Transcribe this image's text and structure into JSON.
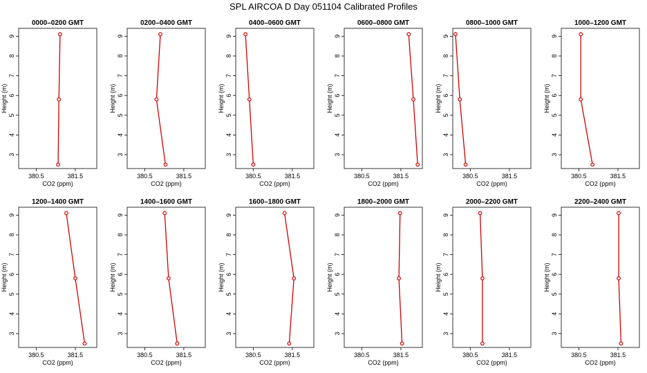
{
  "title": "SPL AIRCOA D  Day 051104  Calibrated Profiles",
  "chart_data": {
    "type": "line",
    "title": "SPL AIRCOA D  Day 051104  Calibrated Profiles",
    "xlabel": "CO2 (ppm)",
    "ylabel": "Height (m)",
    "xlim": [
      380.05,
      382.05
    ],
    "ylim": [
      2.3,
      9.4
    ],
    "xticks": [
      380.5,
      381.5
    ],
    "yticks": [
      3,
      4,
      5,
      6,
      7,
      8,
      9
    ],
    "grid": false,
    "series_color": "#cc0000",
    "panels": [
      {
        "title": "0000–0200 GMT",
        "points": [
          {
            "x": 381.11,
            "y": 9.1
          },
          {
            "x": 381.08,
            "y": 5.8
          },
          {
            "x": 381.06,
            "y": 2.5
          }
        ]
      },
      {
        "title": "0200–0400 GMT",
        "points": [
          {
            "x": 380.9,
            "y": 9.1
          },
          {
            "x": 380.8,
            "y": 5.8
          },
          {
            "x": 381.03,
            "y": 2.5
          }
        ]
      },
      {
        "title": "0400–0600 GMT",
        "points": [
          {
            "x": 380.3,
            "y": 9.1
          },
          {
            "x": 380.4,
            "y": 5.8
          },
          {
            "x": 380.5,
            "y": 2.5
          }
        ]
      },
      {
        "title": "0600–0800 GMT",
        "points": [
          {
            "x": 381.7,
            "y": 9.1
          },
          {
            "x": 381.82,
            "y": 5.8
          },
          {
            "x": 381.93,
            "y": 2.5
          }
        ]
      },
      {
        "title": "0800–1000 GMT",
        "points": [
          {
            "x": 380.12,
            "y": 9.1
          },
          {
            "x": 380.23,
            "y": 5.8
          },
          {
            "x": 380.38,
            "y": 2.5
          }
        ]
      },
      {
        "title": "1000–1200 GMT",
        "points": [
          {
            "x": 380.55,
            "y": 9.1
          },
          {
            "x": 380.55,
            "y": 5.8
          },
          {
            "x": 380.85,
            "y": 2.5
          }
        ]
      },
      {
        "title": "1200–1400 GMT",
        "points": [
          {
            "x": 381.27,
            "y": 9.1
          },
          {
            "x": 381.5,
            "y": 5.8
          },
          {
            "x": 381.74,
            "y": 2.5
          }
        ]
      },
      {
        "title": "1400–1600 GMT",
        "points": [
          {
            "x": 381.01,
            "y": 9.1
          },
          {
            "x": 381.11,
            "y": 5.8
          },
          {
            "x": 381.33,
            "y": 2.5
          }
        ]
      },
      {
        "title": "1600–1800 GMT",
        "points": [
          {
            "x": 381.3,
            "y": 9.1
          },
          {
            "x": 381.54,
            "y": 5.8
          },
          {
            "x": 381.42,
            "y": 2.5
          }
        ]
      },
      {
        "title": "1800–2000 GMT",
        "points": [
          {
            "x": 381.48,
            "y": 9.1
          },
          {
            "x": 381.45,
            "y": 5.8
          },
          {
            "x": 381.53,
            "y": 2.5
          }
        ]
      },
      {
        "title": "2000–2200 GMT",
        "points": [
          {
            "x": 380.75,
            "y": 9.1
          },
          {
            "x": 380.81,
            "y": 5.8
          },
          {
            "x": 380.81,
            "y": 2.5
          }
        ]
      },
      {
        "title": "2200–2400 GMT",
        "points": [
          {
            "x": 381.52,
            "y": 9.1
          },
          {
            "x": 381.52,
            "y": 5.8
          },
          {
            "x": 381.58,
            "y": 2.5
          }
        ]
      }
    ]
  }
}
